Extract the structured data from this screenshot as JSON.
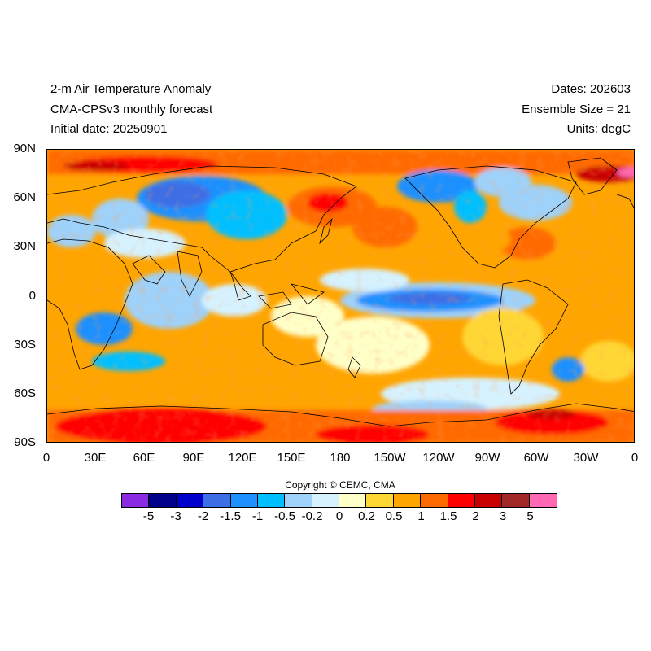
{
  "header": {
    "title": "2-m Air Temperature Anomaly",
    "subtitle": "CMA-CPSv3 monthly forecast",
    "initial_date": "Initial date: 20250901",
    "dates": "Dates: 202603",
    "ensemble": "Ensemble Size = 21",
    "units": "Units: degC"
  },
  "map": {
    "lat_ticks": [
      "90N",
      "60N",
      "30N",
      "0",
      "30S",
      "60S",
      "90S"
    ],
    "lon_ticks": [
      "0",
      "30E",
      "60E",
      "90E",
      "120E",
      "150E",
      "180",
      "150W",
      "120W",
      "90W",
      "60W",
      "30W",
      "0"
    ]
  },
  "copyright": "Copyright © CEMC, CMA",
  "colorbar": {
    "colors": [
      "#8a2be2",
      "#00008b",
      "#0000cd",
      "#3c6ee6",
      "#1e90ff",
      "#00bfff",
      "#9ed2fb",
      "#d6f2ff",
      "#ffffc8",
      "#ffd735",
      "#ffa500",
      "#ff6a00",
      "#ff0000",
      "#c80000",
      "#a02828",
      "#ff69b4"
    ],
    "labels": [
      "-5",
      "-3",
      "-2",
      "-1.5",
      "-1",
      "-0.5",
      "-0.2",
      "0",
      "0.2",
      "0.5",
      "1",
      "1.5",
      "2",
      "3",
      "5"
    ]
  }
}
